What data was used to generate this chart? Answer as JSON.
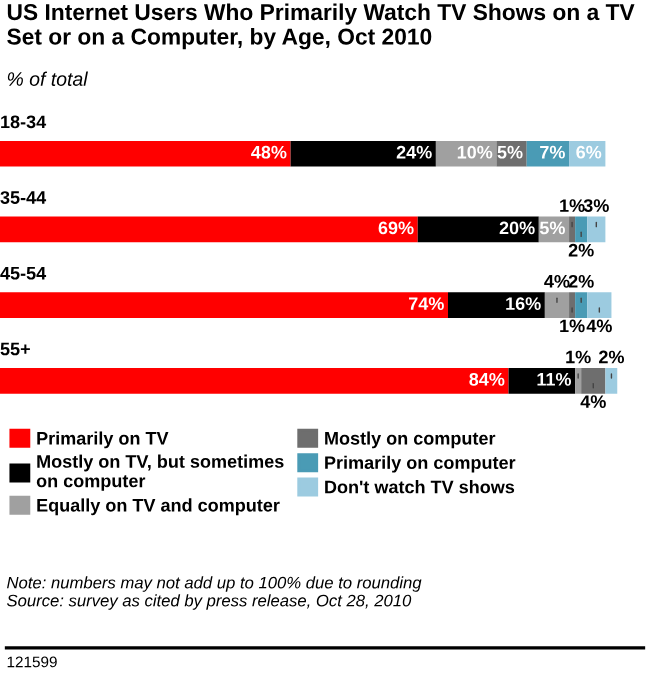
{
  "chart_data": {
    "type": "bar",
    "orientation": "horizontal",
    "stacked": true,
    "legend": "bottom",
    "title": "US Internet Users Who Primarily Watch TV Shows on a TV Set or on a Computer, by Age, Oct 2010",
    "subtitle": "% of total",
    "categories": [
      "18-34",
      "35-44",
      "45-54",
      "55+"
    ],
    "series": [
      {
        "name": "Primarily on TV",
        "color": "#ff0000",
        "values": [
          48,
          69,
          74,
          84
        ],
        "value_labels": [
          "48%",
          "69%",
          "74%",
          "84%"
        ]
      },
      {
        "name": "Mostly on TV, but sometimes on computer",
        "color": "#000000",
        "values": [
          24,
          20,
          16,
          11
        ],
        "value_labels": [
          "24%",
          "20%",
          "16%",
          "11%"
        ]
      },
      {
        "name": "Equally on TV and computer",
        "color": "#a0a0a0",
        "values": [
          10,
          5,
          4,
          1
        ],
        "value_labels": [
          "10%",
          "5%",
          "4%",
          "1%"
        ]
      },
      {
        "name": "Mostly on computer",
        "color": "#6e6e6e",
        "values": [
          5,
          1,
          1,
          4
        ],
        "value_labels": [
          "5%",
          "1%",
          "1%",
          "4%"
        ]
      },
      {
        "name": "Primarily on computer",
        "color": "#4a9bb5",
        "values": [
          7,
          2,
          2,
          null
        ],
        "value_labels": [
          "7%",
          "2%",
          "2%",
          null
        ]
      },
      {
        "name": "Don't watch TV shows",
        "color": "#9ccbe0",
        "values": [
          6,
          3,
          4,
          2
        ],
        "value_labels": [
          "6%",
          "3%",
          "4%",
          "2%"
        ]
      }
    ],
    "annotations": [
      "Note: numbers may not add up to 100% due to rounding",
      "Source: survey as cited by press release, Oct 28, 2010",
      "121599"
    ]
  }
}
